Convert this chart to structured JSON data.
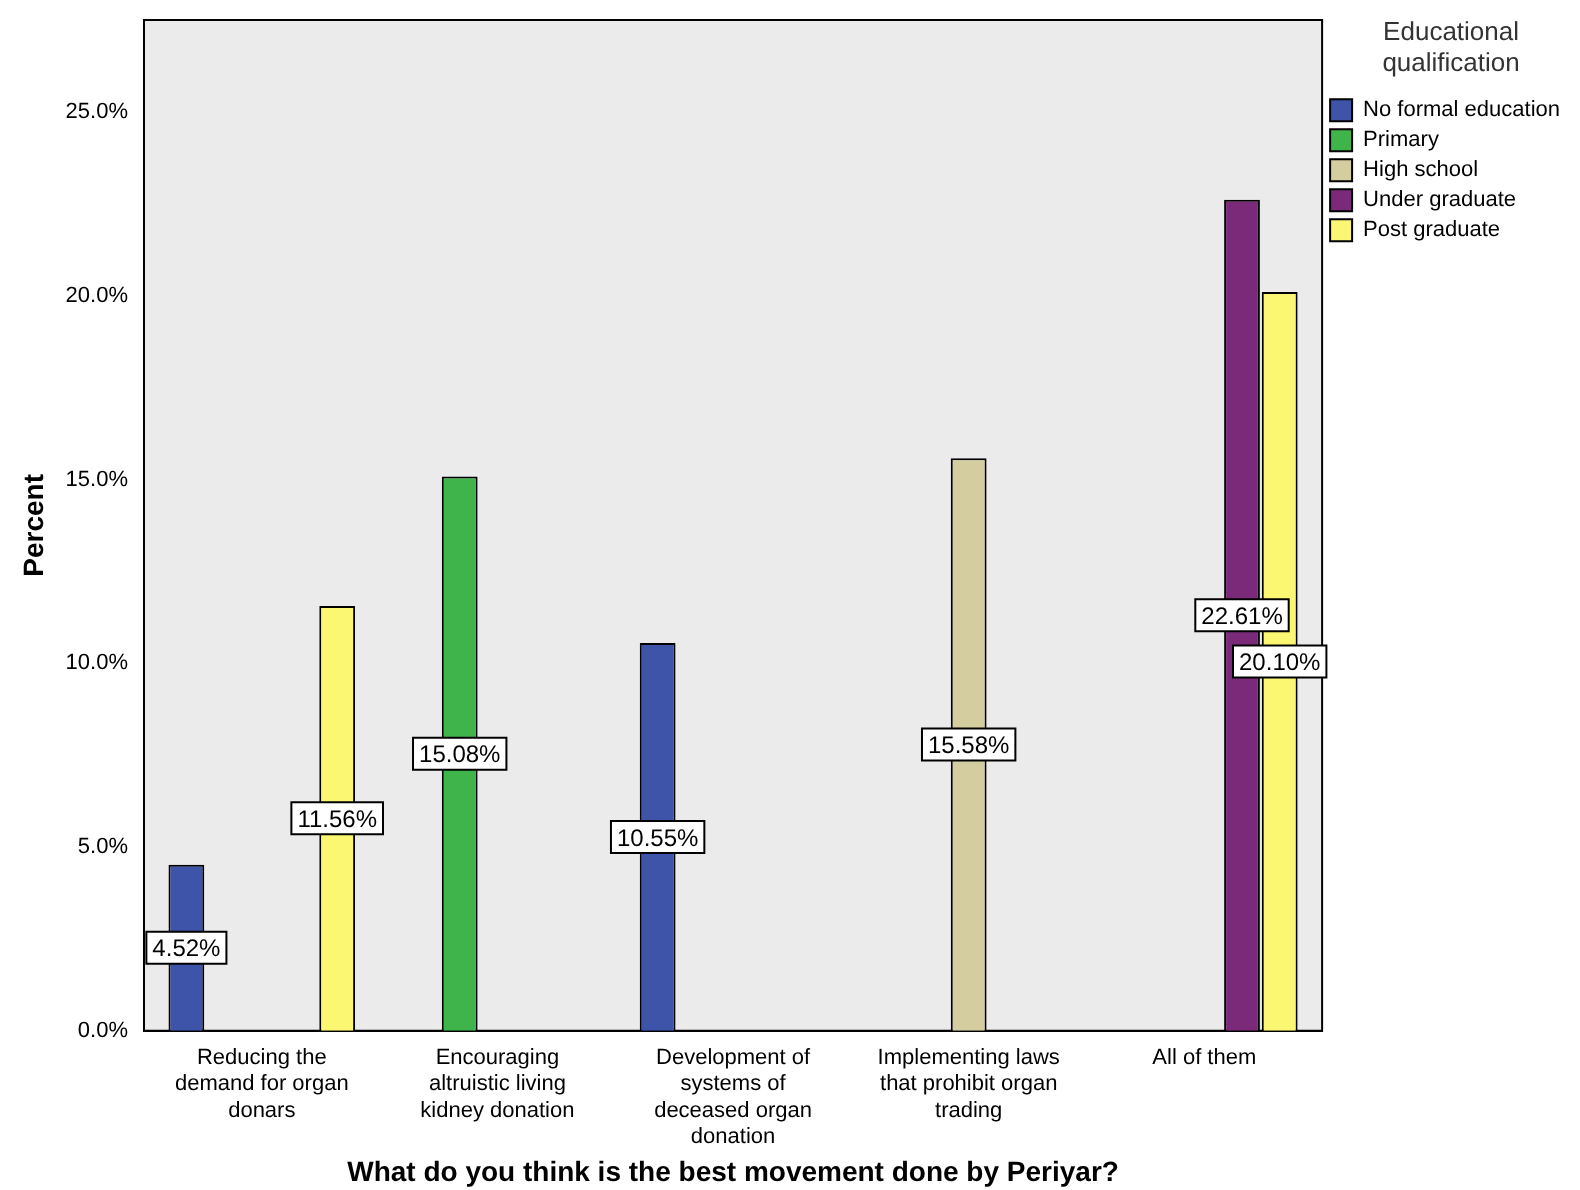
{
  "chart_data": {
    "type": "bar",
    "xlabel": "What do you think is the best movement done by Periyar?",
    "ylabel": "Percent",
    "legend_title": "Educational qualification",
    "categories": [
      "Reducing the demand for organ donars",
      "Encouraging altruistic living kidney donation",
      "Development of systems of deceased organ donation",
      "Implementing laws that prohibit organ trading",
      "All of them"
    ],
    "series": [
      {
        "name": "No formal education",
        "color": "#3e54a8",
        "values": [
          4.52,
          null,
          10.55,
          null,
          null
        ],
        "value_labels": [
          "4.52%",
          null,
          "10.55%",
          null,
          null
        ]
      },
      {
        "name": "Primary",
        "color": "#3fb44a",
        "values": [
          null,
          15.08,
          null,
          null,
          null
        ],
        "value_labels": [
          null,
          "15.08%",
          null,
          null,
          null
        ]
      },
      {
        "name": "High school",
        "color": "#d3cd9f",
        "values": [
          null,
          null,
          null,
          15.58,
          null
        ],
        "value_labels": [
          null,
          null,
          null,
          "15.58%",
          null
        ]
      },
      {
        "name": "Under graduate",
        "color": "#7a2a78",
        "values": [
          null,
          null,
          null,
          null,
          22.61
        ],
        "value_labels": [
          null,
          null,
          null,
          null,
          "22.61%"
        ]
      },
      {
        "name": "Post graduate",
        "color": "#fbf772",
        "values": [
          11.56,
          null,
          null,
          null,
          20.1
        ],
        "value_labels": [
          "11.56%",
          null,
          null,
          null,
          "20.10%"
        ]
      }
    ],
    "ylim": [
      0,
      27.5
    ],
    "yticks": [
      {
        "value": 0,
        "label": "0.0%"
      },
      {
        "value": 5,
        "label": "5.0%"
      },
      {
        "value": 10,
        "label": "10.0%"
      },
      {
        "value": 15,
        "label": "15.0%"
      },
      {
        "value": 20,
        "label": "20.0%"
      },
      {
        "value": 25,
        "label": "25.0%"
      }
    ],
    "grid": false,
    "legend": "right"
  }
}
